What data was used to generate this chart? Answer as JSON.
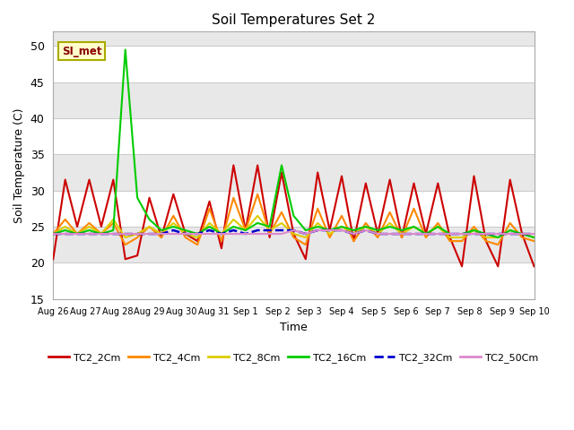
{
  "title": "Soil Temperatures Set 2",
  "xlabel": "Time",
  "ylabel": "Soil Temperature (C)",
  "ylim": [
    15,
    52
  ],
  "yticks": [
    15,
    20,
    25,
    30,
    35,
    40,
    45,
    50
  ],
  "annotation": "SI_met",
  "series_keys": [
    "TC2_2Cm",
    "TC2_4Cm",
    "TC2_8Cm",
    "TC2_16Cm",
    "TC2_32Cm",
    "TC2_50Cm"
  ],
  "series_colors": [
    "#cc0000",
    "#ff8800",
    "#ddcc00",
    "#00cc00",
    "#0000cc",
    "#dd88cc"
  ],
  "series_lw": [
    1.5,
    1.5,
    1.5,
    1.5,
    1.8,
    1.5
  ],
  "series_ls": [
    "-",
    "-",
    "-",
    "-",
    "--",
    "-"
  ],
  "xtick_labels": [
    "Aug 26",
    "Aug 27",
    "Aug 28",
    "Aug 29",
    "Aug 30",
    "Aug 31",
    "Sep 1",
    "Sep 2",
    "Sep 3",
    "Sep 4",
    "Sep 5",
    "Sep 6",
    "Sep 7",
    "Sep 8",
    "Sep 9",
    "Sep 10"
  ],
  "band_colors": [
    "#ffffff",
    "#e8e8e8"
  ],
  "data": {
    "TC2_2Cm": [
      20.5,
      31.5,
      25.0,
      31.5,
      25.0,
      31.5,
      20.5,
      21.0,
      29.0,
      23.5,
      29.5,
      24.0,
      23.0,
      28.5,
      22.0,
      33.5,
      24.5,
      33.5,
      23.5,
      32.5,
      24.0,
      20.5,
      32.5,
      24.5,
      32.0,
      23.0,
      31.0,
      24.0,
      31.5,
      23.5,
      31.0,
      24.0,
      31.0,
      23.5,
      19.5,
      32.0,
      23.0,
      19.5,
      31.5,
      24.0,
      19.5
    ],
    "TC2_4Cm": [
      24.0,
      26.0,
      24.0,
      25.5,
      24.0,
      25.5,
      22.5,
      23.5,
      25.0,
      23.5,
      26.5,
      23.5,
      22.5,
      27.5,
      23.0,
      29.0,
      24.5,
      29.5,
      24.0,
      27.0,
      23.5,
      22.5,
      27.5,
      23.5,
      26.5,
      23.0,
      25.5,
      23.5,
      27.0,
      23.5,
      27.5,
      23.5,
      25.5,
      23.0,
      23.0,
      25.0,
      23.0,
      22.5,
      25.5,
      23.5,
      23.0
    ],
    "TC2_8Cm": [
      24.0,
      25.0,
      24.0,
      25.0,
      24.0,
      26.0,
      23.5,
      24.0,
      25.0,
      24.0,
      25.5,
      24.0,
      23.5,
      25.5,
      24.0,
      26.0,
      24.5,
      26.5,
      24.5,
      25.5,
      24.0,
      23.5,
      25.5,
      24.0,
      25.0,
      24.0,
      25.0,
      24.0,
      25.5,
      24.0,
      25.0,
      24.0,
      25.0,
      23.5,
      23.5,
      24.5,
      23.5,
      23.5,
      24.5,
      24.0,
      23.5
    ],
    "TC2_16Cm": [
      24.0,
      24.5,
      24.0,
      24.5,
      24.0,
      24.5,
      49.5,
      29.0,
      26.0,
      24.5,
      25.0,
      24.5,
      24.0,
      25.0,
      24.0,
      25.0,
      24.5,
      25.5,
      25.0,
      33.5,
      26.5,
      24.5,
      25.0,
      24.5,
      25.0,
      24.5,
      25.0,
      24.5,
      25.0,
      24.5,
      25.0,
      24.0,
      25.0,
      24.0,
      24.0,
      24.5,
      24.0,
      23.5,
      24.5,
      24.0,
      23.5
    ],
    "TC2_32Cm": [
      24.0,
      24.0,
      24.0,
      24.0,
      24.0,
      24.0,
      24.0,
      24.0,
      24.0,
      24.0,
      24.5,
      24.0,
      24.0,
      24.5,
      24.0,
      24.5,
      24.0,
      24.5,
      24.5,
      24.5,
      24.5,
      24.0,
      24.5,
      24.5,
      24.5,
      24.0,
      24.5,
      24.0,
      24.0,
      24.0,
      24.0,
      24.0,
      24.0,
      24.0,
      24.0,
      24.0,
      24.0,
      24.0,
      24.0,
      24.0,
      24.0
    ],
    "TC2_50Cm": [
      24.0,
      24.0,
      24.0,
      24.0,
      24.0,
      24.0,
      24.0,
      24.0,
      24.0,
      24.0,
      24.0,
      24.0,
      24.0,
      24.0,
      24.0,
      24.0,
      24.0,
      24.0,
      24.0,
      24.0,
      24.5,
      24.0,
      24.5,
      24.5,
      24.5,
      24.0,
      24.5,
      24.0,
      24.0,
      24.0,
      24.0,
      24.0,
      24.0,
      24.0,
      24.0,
      24.0,
      24.0,
      24.0,
      24.0,
      24.0,
      24.0
    ]
  }
}
